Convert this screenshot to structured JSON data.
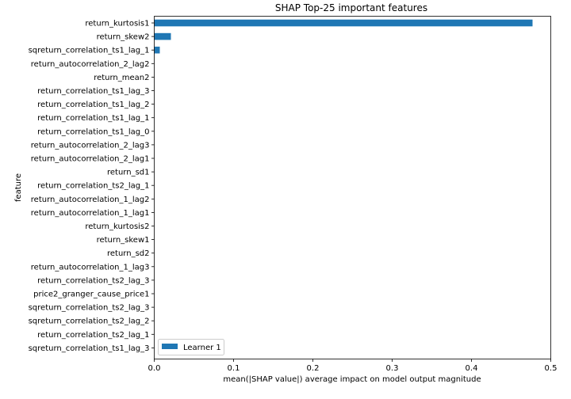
{
  "chart_data": {
    "type": "bar",
    "orientation": "horizontal",
    "title": "SHAP Top-25 important features",
    "xlabel": "mean(|SHAP value|) average impact on model output magnitude",
    "ylabel": "feature",
    "xlim": [
      0,
      0.5
    ],
    "xticks": [
      "0.0",
      "0.1",
      "0.2",
      "0.3",
      "0.4",
      "0.5"
    ],
    "grid": false,
    "legend_position": "lower-left",
    "categories": [
      "return_kurtosis1",
      "return_skew2",
      "sqreturn_correlation_ts1_lag_1",
      "return_autocorrelation_2_lag2",
      "return_mean2",
      "return_correlation_ts1_lag_3",
      "return_correlation_ts1_lag_2",
      "return_correlation_ts1_lag_1",
      "return_correlation_ts1_lag_0",
      "return_autocorrelation_2_lag3",
      "return_autocorrelation_2_lag1",
      "return_sd1",
      "return_correlation_ts2_lag_1",
      "return_autocorrelation_1_lag2",
      "return_autocorrelation_1_lag1",
      "return_kurtosis2",
      "return_skew1",
      "return_sd2",
      "return_autocorrelation_1_lag3",
      "return_correlation_ts2_lag_3",
      "price2_granger_cause_price1",
      "sqreturn_correlation_ts2_lag_3",
      "sqreturn_correlation_ts2_lag_2",
      "return_correlation_ts2_lag_1",
      "sqreturn_correlation_ts1_lag_3"
    ],
    "series": [
      {
        "name": "Learner 1",
        "color": "#1f77b4",
        "values": [
          0.477,
          0.021,
          0.007,
          0.0,
          0.0,
          0.0,
          0.0,
          0.0,
          0.0,
          0.0,
          0.0,
          0.0,
          0.0,
          0.0,
          0.0,
          0.0,
          0.0,
          0.0,
          0.0,
          0.0,
          0.0,
          0.0,
          0.0,
          0.0,
          0.0
        ]
      }
    ]
  }
}
